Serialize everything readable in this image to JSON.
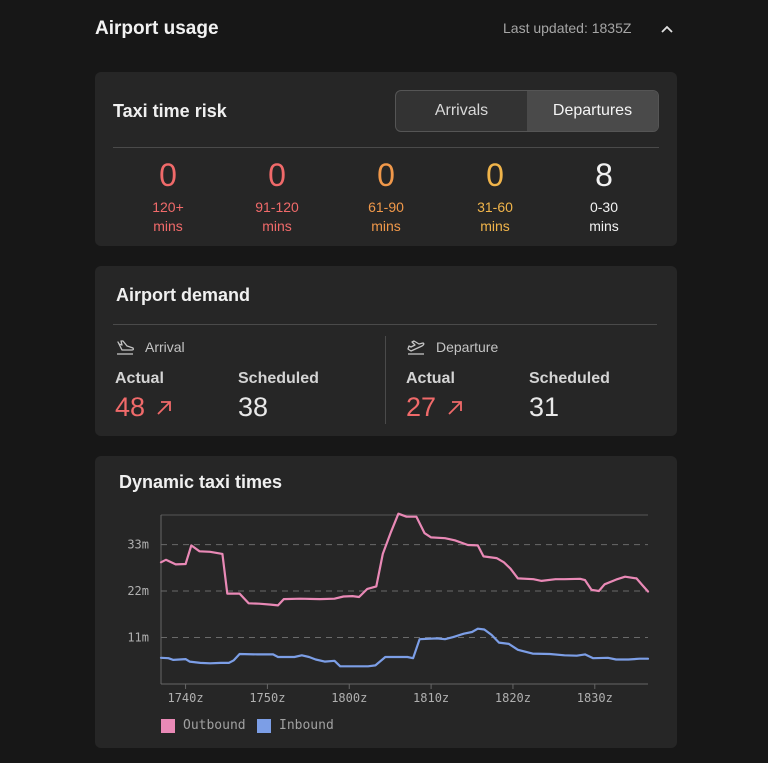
{
  "header": {
    "title": "Airport usage",
    "last_updated": "Last updated: 1835Z"
  },
  "taxi_risk": {
    "title": "Taxi time risk",
    "tabs": [
      {
        "label": "Arrivals",
        "active": false
      },
      {
        "label": "Departures",
        "active": true
      }
    ],
    "buckets": [
      {
        "value": "0",
        "range": "120+",
        "unit": "mins",
        "color": "#f06a6a"
      },
      {
        "value": "0",
        "range": "91-120",
        "unit": "mins",
        "color": "#f06a6a"
      },
      {
        "value": "0",
        "range": "61-90",
        "unit": "mins",
        "color": "#f0984a"
      },
      {
        "value": "0",
        "range": "31-60",
        "unit": "mins",
        "color": "#f0b44a"
      },
      {
        "value": "8",
        "range": "0-30",
        "unit": "mins",
        "color": "#f2f2f2"
      }
    ]
  },
  "demand": {
    "title": "Airport demand",
    "arrival": {
      "label": "Arrival",
      "actual_label": "Actual",
      "actual": "48",
      "scheduled_label": "Scheduled",
      "scheduled": "38"
    },
    "departure": {
      "label": "Departure",
      "actual_label": "Actual",
      "actual": "27",
      "scheduled_label": "Scheduled",
      "scheduled": "31"
    }
  },
  "chart_data": {
    "type": "line",
    "title": "Dynamic taxi times",
    "x_ticks": [
      "1740z",
      "1750z",
      "1800z",
      "1810z",
      "1820z",
      "1830z"
    ],
    "x_tick_minutes": [
      0,
      10,
      20,
      30,
      40,
      50
    ],
    "y_ticks": [
      "11m",
      "22m",
      "33m"
    ],
    "y_tick_values": [
      11,
      22,
      33
    ],
    "xlim": [
      -3.0,
      56.5
    ],
    "ylim": [
      0,
      40
    ],
    "grid": "horizontal dashed",
    "legend_position": "bottom-left",
    "series": [
      {
        "name": "Outbound",
        "color": "#e989b6",
        "points": [
          [
            -3,
            28.8
          ],
          [
            -2.4,
            29.4
          ],
          [
            -1.2,
            28.3
          ],
          [
            0,
            28.4
          ],
          [
            0.7,
            32.8
          ],
          [
            1.7,
            31.4
          ],
          [
            3,
            31.3
          ],
          [
            4.5,
            30.8
          ],
          [
            5.1,
            21.4
          ],
          [
            6.6,
            21.4
          ],
          [
            7.7,
            19.1
          ],
          [
            9,
            19.0
          ],
          [
            10.4,
            18.8
          ],
          [
            11.3,
            18.6
          ],
          [
            12,
            20.1
          ],
          [
            14,
            20.2
          ],
          [
            16.4,
            20.1
          ],
          [
            18.2,
            20.2
          ],
          [
            19.3,
            20.7
          ],
          [
            20.4,
            20.8
          ],
          [
            21.2,
            20.6
          ],
          [
            22.2,
            22.5
          ],
          [
            23.3,
            23.1
          ],
          [
            24.1,
            30.8
          ],
          [
            25.1,
            36.0
          ],
          [
            26,
            40.3
          ],
          [
            27,
            39.6
          ],
          [
            28.2,
            39.6
          ],
          [
            29.2,
            35.7
          ],
          [
            30,
            34.7
          ],
          [
            31.7,
            34.5
          ],
          [
            32.9,
            34.0
          ],
          [
            34.5,
            32.9
          ],
          [
            35.7,
            32.8
          ],
          [
            36.4,
            30.2
          ],
          [
            38,
            29.8
          ],
          [
            38.9,
            28.8
          ],
          [
            39.7,
            27.3
          ],
          [
            40.6,
            25.0
          ],
          [
            42.5,
            24.8
          ],
          [
            43.5,
            24.4
          ],
          [
            45.2,
            24.8
          ],
          [
            46.3,
            24.8
          ],
          [
            48.2,
            24.9
          ],
          [
            48.8,
            24.6
          ],
          [
            49.6,
            22.3
          ],
          [
            50.5,
            22.0
          ],
          [
            51.2,
            23.6
          ],
          [
            52.6,
            24.7
          ],
          [
            53.7,
            25.4
          ],
          [
            55.1,
            25.0
          ],
          [
            55.8,
            23.4
          ],
          [
            56.5,
            21.9
          ]
        ]
      },
      {
        "name": "Inbound",
        "color": "#7c9ee6",
        "points": [
          [
            -3,
            6.2
          ],
          [
            -2.1,
            6.1
          ],
          [
            -1.5,
            5.7
          ],
          [
            0,
            5.9
          ],
          [
            0.5,
            5.3
          ],
          [
            1.8,
            5.0
          ],
          [
            3,
            4.9
          ],
          [
            4.3,
            5.0
          ],
          [
            5.3,
            5.0
          ],
          [
            5.9,
            5.6
          ],
          [
            6.6,
            7.1
          ],
          [
            8.8,
            7.0
          ],
          [
            10.7,
            7.0
          ],
          [
            11.3,
            6.4
          ],
          [
            13.3,
            6.4
          ],
          [
            14.2,
            6.8
          ],
          [
            15.1,
            6.4
          ],
          [
            15.9,
            5.8
          ],
          [
            17,
            5.3
          ],
          [
            18.2,
            5.5
          ],
          [
            18.9,
            4.2
          ],
          [
            22.3,
            4.2
          ],
          [
            23.2,
            4.4
          ],
          [
            24.4,
            6.4
          ],
          [
            27.1,
            6.4
          ],
          [
            27.8,
            6.1
          ],
          [
            28.6,
            10.6
          ],
          [
            30.7,
            10.8
          ],
          [
            31.7,
            10.6
          ],
          [
            32.7,
            11.1
          ],
          [
            34,
            11.9
          ],
          [
            35,
            12.3
          ],
          [
            35.7,
            13.1
          ],
          [
            36.5,
            12.9
          ],
          [
            37.4,
            11.6
          ],
          [
            38.3,
            9.8
          ],
          [
            39.5,
            9.5
          ],
          [
            40.6,
            8.1
          ],
          [
            42.4,
            7.2
          ],
          [
            44.5,
            7.1
          ],
          [
            46.3,
            6.8
          ],
          [
            47.8,
            6.7
          ],
          [
            48.8,
            7.0
          ],
          [
            49.8,
            6.1
          ],
          [
            51.6,
            6.2
          ],
          [
            52.6,
            5.8
          ],
          [
            54.1,
            5.8
          ],
          [
            55.5,
            6.0
          ],
          [
            56.5,
            6.0
          ]
        ]
      }
    ]
  }
}
